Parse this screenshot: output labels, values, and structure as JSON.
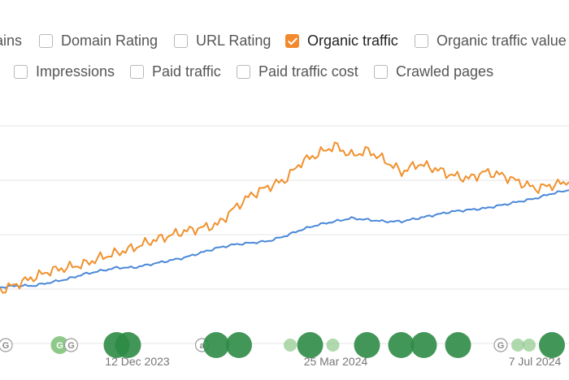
{
  "filters": {
    "row1": [
      {
        "label": "ains",
        "checked": false,
        "partial": true
      },
      {
        "label": "Domain Rating",
        "checked": false
      },
      {
        "label": "URL Rating",
        "checked": false
      },
      {
        "label": "Organic traffic",
        "checked": true
      },
      {
        "label": "Organic traffic value",
        "checked": false
      }
    ],
    "row2": [
      {
        "label": "Impressions",
        "checked": false
      },
      {
        "label": "Paid traffic",
        "checked": false
      },
      {
        "label": "Paid traffic cost",
        "checked": false
      },
      {
        "label": "Crawled pages",
        "checked": false
      }
    ]
  },
  "colors": {
    "checkbox_checked": "#f2892d",
    "series_blue": "#4a88d8",
    "series_orange": "#f0912e",
    "annotation_green": "#2e8b45",
    "annotation_light_green": "#8fc98a"
  },
  "chart_data": {
    "type": "line",
    "x_ticks": [
      "12 Dec 2023",
      "25 Mar 2024",
      "7 Jul 2024"
    ],
    "grid": true,
    "series": [
      {
        "color": "#4a88d8",
        "values": [
          0.02,
          0.03,
          0.03,
          0.05,
          0.07,
          0.1,
          0.12,
          0.14,
          0.14,
          0.16,
          0.18,
          0.2,
          0.23,
          0.26,
          0.28,
          0.29,
          0.3,
          0.33,
          0.37,
          0.4,
          0.42,
          0.44,
          0.43,
          0.42,
          0.42,
          0.44,
          0.46,
          0.48,
          0.49,
          0.5,
          0.52,
          0.54,
          0.56,
          0.59,
          0.61
        ]
      },
      {
        "color": "#f0912e",
        "values": [
          0.0,
          0.04,
          0.08,
          0.12,
          0.14,
          0.16,
          0.2,
          0.23,
          0.26,
          0.3,
          0.33,
          0.36,
          0.38,
          0.4,
          0.5,
          0.58,
          0.63,
          0.67,
          0.78,
          0.83,
          0.88,
          0.82,
          0.85,
          0.79,
          0.72,
          0.77,
          0.74,
          0.7,
          0.68,
          0.72,
          0.7,
          0.66,
          0.62,
          0.64,
          0.66
        ]
      }
    ],
    "annotations": [
      {
        "kind": "google",
        "label": "G",
        "x": 0.01
      },
      {
        "kind": "light",
        "label": "G",
        "x": 0.105
      },
      {
        "kind": "google",
        "label": "G",
        "x": 0.125
      },
      {
        "kind": "dark",
        "x": 0.205
      },
      {
        "kind": "dark",
        "x": 0.225
      },
      {
        "kind": "google",
        "label": "a",
        "x": 0.355
      },
      {
        "kind": "dark",
        "x": 0.38
      },
      {
        "kind": "dark",
        "x": 0.42
      },
      {
        "kind": "light-small",
        "x": 0.51
      },
      {
        "kind": "dark",
        "x": 0.545
      },
      {
        "kind": "light-small",
        "x": 0.585
      },
      {
        "kind": "dark",
        "x": 0.645
      },
      {
        "kind": "dark",
        "x": 0.705
      },
      {
        "kind": "dark",
        "x": 0.745
      },
      {
        "kind": "dark",
        "x": 0.805
      },
      {
        "kind": "google",
        "label": "G",
        "x": 0.88
      },
      {
        "kind": "light-small",
        "x": 0.91
      },
      {
        "kind": "light-small",
        "x": 0.93
      },
      {
        "kind": "dark",
        "x": 0.97
      }
    ]
  }
}
